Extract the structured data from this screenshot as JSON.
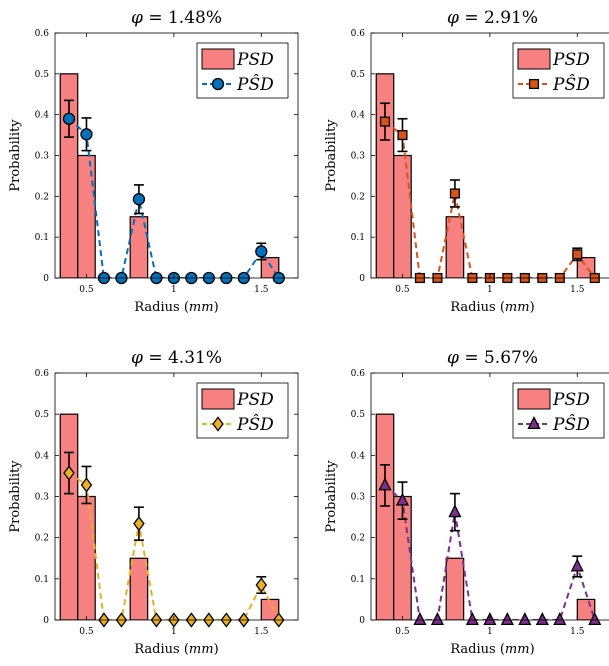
{
  "chart_data": [
    {
      "type": "bar",
      "title": "φ = 1.48%",
      "xlabel": "Radius (mm)",
      "ylabel": "Probability",
      "xlim": [
        0.32,
        1.71
      ],
      "ylim": [
        0,
        0.6
      ],
      "xticks": [
        "0.5",
        "1",
        "1.5"
      ],
      "yticks": [
        "0",
        "0.1",
        "0.2",
        "0.3",
        "0.4",
        "0.5",
        "0.6"
      ],
      "legend": {
        "position": "top-right",
        "bar_label": "PSD",
        "line_label": "PŜD"
      },
      "bars": {
        "x": [
          0.4,
          0.5,
          0.8,
          1.55
        ],
        "values": [
          0.5,
          0.3,
          0.15,
          0.05
        ],
        "width": 0.1,
        "color": "#f78080"
      },
      "series": {
        "name": "PŜD",
        "color": "#0072bd",
        "marker": "circle",
        "x": [
          0.4,
          0.5,
          0.6,
          0.7,
          0.8,
          0.9,
          1.0,
          1.1,
          1.2,
          1.3,
          1.4,
          1.5,
          1.6
        ],
        "values": [
          0.39,
          0.352,
          0,
          0,
          0.193,
          0,
          0,
          0,
          0,
          0,
          0,
          0.065,
          0
        ],
        "errors": [
          0.045,
          0.04,
          null,
          null,
          0.035,
          null,
          null,
          null,
          null,
          null,
          null,
          0.02,
          null
        ]
      }
    },
    {
      "type": "bar",
      "title": "φ = 2.91%",
      "xlabel": "Radius (mm)",
      "ylabel": "Probability",
      "xlim": [
        0.32,
        1.71
      ],
      "ylim": [
        0,
        0.6
      ],
      "xticks": [
        "0.5",
        "1",
        "1.5"
      ],
      "yticks": [
        "0",
        "0.1",
        "0.2",
        "0.3",
        "0.4",
        "0.5",
        "0.6"
      ],
      "legend": {
        "position": "top-right",
        "bar_label": "PSD",
        "line_label": "PŜD"
      },
      "bars": {
        "x": [
          0.4,
          0.5,
          0.8,
          1.55
        ],
        "values": [
          0.5,
          0.3,
          0.15,
          0.05
        ],
        "width": 0.1,
        "color": "#f78080"
      },
      "series": {
        "name": "PŜD",
        "color": "#d95319",
        "marker": "square",
        "x": [
          0.4,
          0.5,
          0.6,
          0.7,
          0.8,
          0.9,
          1.0,
          1.1,
          1.2,
          1.3,
          1.4,
          1.5,
          1.6
        ],
        "values": [
          0.383,
          0.35,
          0,
          0,
          0.207,
          0,
          0,
          0,
          0,
          0,
          0,
          0.058,
          0
        ],
        "errors": [
          0.045,
          0.04,
          null,
          null,
          0.033,
          null,
          null,
          null,
          null,
          null,
          null,
          0.015,
          null
        ]
      }
    },
    {
      "type": "bar",
      "title": "φ = 4.31%",
      "xlabel": "Radius (mm)",
      "ylabel": "Probability",
      "xlim": [
        0.32,
        1.71
      ],
      "ylim": [
        0,
        0.6
      ],
      "xticks": [
        "0.5",
        "1",
        "1.5"
      ],
      "yticks": [
        "0",
        "0.1",
        "0.2",
        "0.3",
        "0.4",
        "0.5",
        "0.6"
      ],
      "legend": {
        "position": "top-right",
        "bar_label": "PSD",
        "line_label": "PŜD"
      },
      "bars": {
        "x": [
          0.4,
          0.5,
          0.8,
          1.55
        ],
        "values": [
          0.5,
          0.3,
          0.15,
          0.05
        ],
        "width": 0.1,
        "color": "#f78080"
      },
      "series": {
        "name": "PŜD",
        "color": "#edb120",
        "marker": "diamond",
        "x": [
          0.4,
          0.5,
          0.6,
          0.7,
          0.8,
          0.9,
          1.0,
          1.1,
          1.2,
          1.3,
          1.4,
          1.5,
          1.6
        ],
        "values": [
          0.357,
          0.328,
          0,
          0,
          0.234,
          0,
          0,
          0,
          0,
          0,
          0,
          0.085,
          0
        ],
        "errors": [
          0.05,
          0.045,
          null,
          null,
          0.04,
          null,
          null,
          null,
          null,
          null,
          null,
          0.02,
          null
        ]
      }
    },
    {
      "type": "bar",
      "title": "φ = 5.67%",
      "xlabel": "Radius (mm)",
      "ylabel": "Probability",
      "xlim": [
        0.32,
        1.71
      ],
      "ylim": [
        0,
        0.6
      ],
      "xticks": [
        "0.5",
        "1",
        "1.5"
      ],
      "yticks": [
        "0",
        "0.1",
        "0.2",
        "0.3",
        "0.4",
        "0.5",
        "0.6"
      ],
      "legend": {
        "position": "top-right",
        "bar_label": "PSD",
        "line_label": "PŜD"
      },
      "bars": {
        "x": [
          0.4,
          0.5,
          0.8,
          1.55
        ],
        "values": [
          0.5,
          0.3,
          0.15,
          0.05
        ],
        "width": 0.1,
        "color": "#f78080"
      },
      "series": {
        "name": "PŜD",
        "color": "#7e2f8e",
        "marker": "triangle",
        "x": [
          0.4,
          0.5,
          0.6,
          0.7,
          0.8,
          0.9,
          1.0,
          1.1,
          1.2,
          1.3,
          1.4,
          1.5,
          1.6
        ],
        "values": [
          0.327,
          0.29,
          0,
          0,
          0.262,
          0,
          0,
          0,
          0,
          0,
          0,
          0.13,
          0
        ],
        "errors": [
          0.05,
          0.045,
          null,
          null,
          0.045,
          null,
          null,
          null,
          null,
          null,
          null,
          0.025,
          null
        ]
      }
    }
  ]
}
